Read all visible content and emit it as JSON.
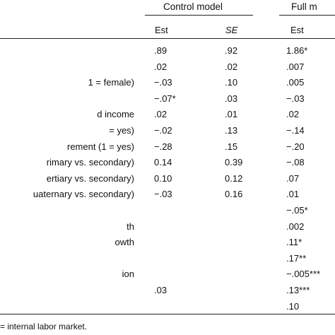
{
  "header": {
    "control_model": "Control model",
    "full_model": "Full m",
    "est_1": "Est",
    "se": "SE",
    "est_2": "Est"
  },
  "rows": [
    {
      "label": "",
      "est1": ".89",
      "se": ".92",
      "est2": "1.86*"
    },
    {
      "label": "",
      "est1": ".02",
      "se": ".02",
      "est2": ".007"
    },
    {
      "label": "1 = female)",
      "est1": "−.03",
      "se": ".10",
      "est2": ".005"
    },
    {
      "label": "",
      "est1": "−.07*",
      "se": ".03",
      "est2": "−.03"
    },
    {
      "label": "d income",
      "est1": ".02",
      "se": ".01",
      "est2": ".02"
    },
    {
      "label": "= yes)",
      "est1": "−.02",
      "se": ".13",
      "est2": "−.14"
    },
    {
      "label": "rement (1 = yes)",
      "est1": "−.28",
      "se": ".15",
      "est2": "−.20"
    },
    {
      "label": "rimary vs. secondary)",
      "est1": "0.14",
      "se": "0.39",
      "est2": "−.08"
    },
    {
      "label": "ertiary vs. secondary)",
      "est1": "0.10",
      "se": "0.12",
      "est2": ".07"
    },
    {
      "label": "uaternary vs. secondary)",
      "est1": "−.03",
      "se": "0.16",
      "est2": ".01"
    },
    {
      "label": "",
      "est1": "",
      "se": "",
      "est2": "−.05*"
    },
    {
      "label": "th",
      "est1": "",
      "se": "",
      "est2": ".002"
    },
    {
      "label": "owth",
      "est1": "",
      "se": "",
      "est2": ".11*"
    },
    {
      "label": "",
      "est1": "",
      "se": "",
      "est2": ".17**"
    },
    {
      "label": "ion",
      "est1": "",
      "se": "",
      "est2": "−.005***"
    },
    {
      "label": "",
      "est1": ".03",
      "se": "",
      "est2": ".13***"
    },
    {
      "label": "",
      "est1": "",
      "se": "",
      "est2": ".10"
    }
  ],
  "note": "= internal labor market."
}
